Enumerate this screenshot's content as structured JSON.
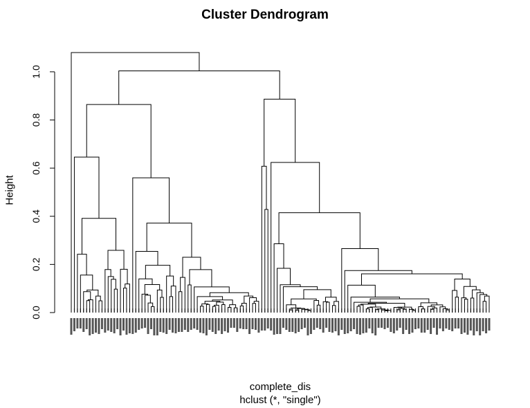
{
  "chart_data": {
    "type": "dendrogram",
    "title": "Cluster Dendrogram",
    "xlabel": "complete_dis",
    "sub": "hclust (*, \"single\")",
    "ylabel": "Height",
    "ylim": [
      0,
      1.08
    ],
    "yticks": [
      0.0,
      0.2,
      0.4,
      0.6,
      0.8,
      1.0
    ],
    "ytick_labels": [
      "0.0",
      "0.2",
      "0.4",
      "0.6",
      "0.8",
      "1.0"
    ],
    "leaf_count": 137,
    "merge_heights_approx": [
      1.08,
      1.0,
      0.86,
      0.78,
      0.72,
      0.7,
      0.66,
      0.65,
      0.63,
      0.6,
      0.58,
      0.56,
      0.55,
      0.54,
      0.53,
      0.52,
      0.51,
      0.5,
      0.49,
      0.48,
      0.47,
      0.46,
      0.45,
      0.44,
      0.43,
      0.42,
      0.41,
      0.4,
      0.38,
      0.37,
      0.36,
      0.35,
      0.34,
      0.33,
      0.32,
      0.31,
      0.3,
      0.29,
      0.28,
      0.27,
      0.26,
      0.25,
      0.24,
      0.23,
      0.22,
      0.21,
      0.2,
      0.18,
      0.17,
      0.16,
      0.15,
      0.13,
      0.11,
      0.1,
      0.07
    ]
  }
}
